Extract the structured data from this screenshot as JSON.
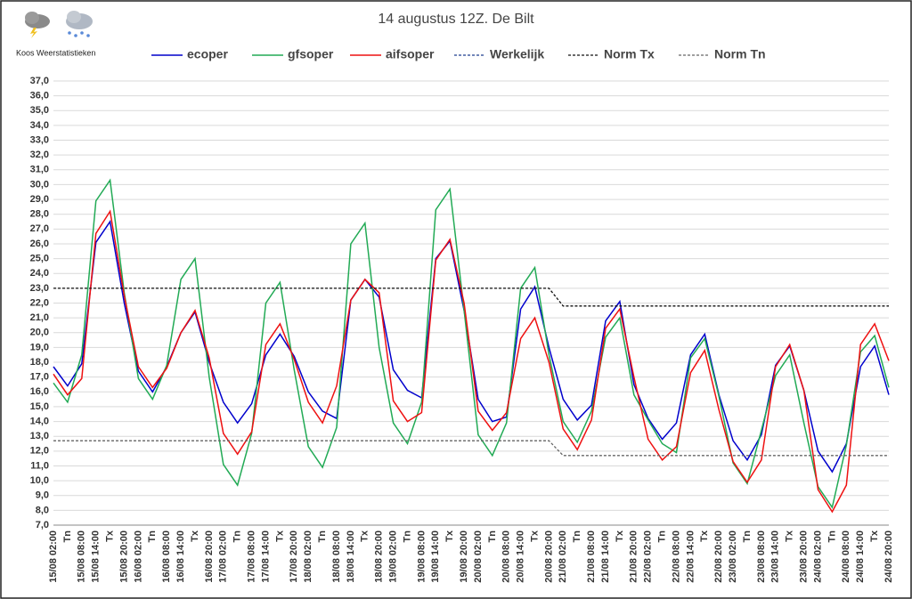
{
  "chart_data": {
    "type": "line",
    "title": "14 augustus 12Z. De Bilt",
    "brand": "Koos Weerstatistieken",
    "categories": [
      "15/08 02:00",
      "Tn",
      "15/08 08:00",
      "15/08 14:00",
      "Tx",
      "15/08 20:00",
      "16/08 02:00",
      "Tn",
      "16/08 08:00",
      "16/08 14:00",
      "Tx",
      "16/08 20:00",
      "17/08 02:00",
      "Tn",
      "17/08 08:00",
      "17/08 14:00",
      "Tx",
      "17/08 20:00",
      "18/08 02:00",
      "Tn",
      "18/08 08:00",
      "18/08 14:00",
      "Tx",
      "18/08 20:00",
      "19/08 02:00",
      "Tn",
      "19/08 08:00",
      "19/08 14:00",
      "Tx",
      "19/08 20:00",
      "20/08 02:00",
      "Tn",
      "20/08 08:00",
      "20/08 14:00",
      "Tx",
      "20/08 20:00",
      "21/08 02:00",
      "Tn",
      "21/08 08:00",
      "21/08 14:00",
      "Tx",
      "21/08 20:00",
      "22/08 02:00",
      "Tn",
      "22/08 08:00",
      "22/08 14:00",
      "Tx",
      "22/08 20:00",
      "23/08 02:00",
      "Tn",
      "23/08 08:00",
      "23/08 14:00",
      "Tx",
      "23/08 20:00",
      "24/08 02:00",
      "Tn",
      "24/08 08:00",
      "24/08 14:00",
      "Tx",
      "24/08 20:00"
    ],
    "series": [
      {
        "name": "ecoper",
        "color": "#0000cc",
        "dashed": false,
        "values": [
          17.7,
          16.4,
          17.9,
          26.1,
          27.5,
          22.0,
          17.4,
          16.0,
          17.7,
          20.0,
          21.4,
          18.0,
          15.3,
          13.9,
          15.2,
          18.5,
          19.9,
          18.4,
          16.0,
          14.7,
          14.2,
          22.2,
          23.6,
          22.4,
          17.5,
          16.1,
          15.6,
          25.0,
          26.2,
          21.5,
          15.5,
          14.0,
          14.3,
          21.6,
          23.1,
          19.0,
          15.5,
          14.1,
          15.1,
          20.8,
          22.1,
          16.5,
          14.2,
          12.8,
          13.9,
          18.5,
          19.9,
          15.8,
          12.7,
          11.4,
          13.1,
          17.8,
          19.1,
          16.1,
          12.0,
          10.6,
          12.5,
          17.7,
          19.1,
          15.8
        ]
      },
      {
        "name": "gfsoper",
        "color": "#22aa55",
        "dashed": false,
        "values": [
          16.6,
          15.3,
          18.5,
          28.9,
          30.3,
          22.7,
          16.9,
          15.5,
          17.8,
          23.6,
          25.0,
          17.0,
          11.1,
          9.7,
          13.2,
          22.0,
          23.4,
          17.5,
          12.3,
          10.9,
          13.6,
          26.0,
          27.4,
          19.0,
          13.9,
          12.5,
          15.3,
          28.3,
          29.7,
          21.5,
          13.1,
          11.7,
          13.9,
          23.0,
          24.4,
          18.5,
          14.0,
          12.6,
          14.7,
          19.7,
          21.0,
          15.8,
          14.1,
          12.5,
          11.9,
          18.3,
          19.6,
          15.7,
          11.2,
          9.8,
          13.4,
          17.1,
          18.5,
          13.9,
          9.6,
          8.2,
          12.4,
          18.7,
          19.8,
          16.3
        ]
      },
      {
        "name": "aifsoper",
        "color": "#ee1111",
        "dashed": false,
        "values": [
          17.2,
          15.8,
          16.9,
          26.7,
          28.2,
          22.5,
          17.7,
          16.3,
          17.6,
          20.0,
          21.5,
          18.3,
          13.2,
          11.8,
          13.3,
          19.2,
          20.6,
          18.2,
          15.3,
          13.9,
          16.4,
          22.2,
          23.6,
          22.7,
          15.4,
          14.0,
          14.6,
          24.9,
          26.3,
          22.0,
          14.7,
          13.4,
          14.6,
          19.6,
          21.0,
          18.0,
          13.5,
          12.1,
          14.1,
          20.3,
          21.6,
          17.0,
          12.8,
          11.4,
          12.3,
          17.3,
          18.8,
          14.8,
          11.3,
          9.9,
          11.4,
          17.7,
          19.2,
          16.1,
          9.4,
          7.9,
          9.7,
          19.2,
          20.6,
          18.1
        ]
      },
      {
        "name": "Werkelijk",
        "color": "#1f3f8f",
        "dashed": true,
        "values": [
          null,
          null,
          null,
          null,
          null,
          null,
          null,
          null,
          null,
          null,
          null,
          null,
          null,
          null,
          null,
          null,
          null,
          null,
          null,
          null,
          null,
          null,
          null,
          null,
          null,
          null,
          null,
          null,
          null,
          null,
          null,
          null,
          null,
          null,
          null,
          null,
          null,
          null,
          null,
          null,
          null,
          null,
          null,
          null,
          null,
          null,
          null,
          null,
          null,
          null,
          null,
          null,
          null,
          null,
          null,
          null,
          null,
          null,
          null,
          null
        ]
      },
      {
        "name": "Norm Tx",
        "color": "#111111",
        "dashed": true,
        "values": [
          23.0,
          23.0,
          23.0,
          23.0,
          23.0,
          23.0,
          23.0,
          23.0,
          23.0,
          23.0,
          23.0,
          23.0,
          23.0,
          23.0,
          23.0,
          23.0,
          23.0,
          23.0,
          23.0,
          23.0,
          23.0,
          23.0,
          23.0,
          23.0,
          23.0,
          23.0,
          23.0,
          23.0,
          23.0,
          23.0,
          23.0,
          23.0,
          23.0,
          23.0,
          23.0,
          23.0,
          21.8,
          21.8,
          21.8,
          21.8,
          21.8,
          21.8,
          21.8,
          21.8,
          21.8,
          21.8,
          21.8,
          21.8,
          21.8,
          21.8,
          21.8,
          21.8,
          21.8,
          21.8,
          21.8,
          21.8,
          21.8,
          21.8,
          21.8,
          21.8
        ]
      },
      {
        "name": "Norm Tn",
        "color": "#666666",
        "dashed": true,
        "values": [
          12.7,
          12.7,
          12.7,
          12.7,
          12.7,
          12.7,
          12.7,
          12.7,
          12.7,
          12.7,
          12.7,
          12.7,
          12.7,
          12.7,
          12.7,
          12.7,
          12.7,
          12.7,
          12.7,
          12.7,
          12.7,
          12.7,
          12.7,
          12.7,
          12.7,
          12.7,
          12.7,
          12.7,
          12.7,
          12.7,
          12.7,
          12.7,
          12.7,
          12.7,
          12.7,
          12.7,
          11.7,
          11.7,
          11.7,
          11.7,
          11.7,
          11.7,
          11.7,
          11.7,
          11.7,
          11.7,
          11.7,
          11.7,
          11.7,
          11.7,
          11.7,
          11.7,
          11.7,
          11.7,
          11.7,
          11.7,
          11.7,
          11.7,
          11.7,
          11.7
        ]
      }
    ],
    "ylim": [
      7,
      37
    ],
    "yticks": [
      {
        "value": 7,
        "label": "7,0"
      },
      {
        "value": 8,
        "label": "8,0"
      },
      {
        "value": 9,
        "label": "9,0"
      },
      {
        "value": 10,
        "label": "10,0"
      },
      {
        "value": 11,
        "label": "11,0"
      },
      {
        "value": 12,
        "label": "12,0"
      },
      {
        "value": 13,
        "label": "13,0"
      },
      {
        "value": 14,
        "label": "14,0"
      },
      {
        "value": 15,
        "label": "15,0"
      },
      {
        "value": 16,
        "label": "16,0"
      },
      {
        "value": 17,
        "label": "17,0"
      },
      {
        "value": 18,
        "label": "18,0"
      },
      {
        "value": 19,
        "label": "19,0"
      },
      {
        "value": 20,
        "label": "20,0"
      },
      {
        "value": 21,
        "label": "21,0"
      },
      {
        "value": 22,
        "label": "22,0"
      },
      {
        "value": 23,
        "label": "23,0"
      },
      {
        "value": 24,
        "label": "24,0"
      },
      {
        "value": 25,
        "label": "25,0"
      },
      {
        "value": 26,
        "label": "26,0"
      },
      {
        "value": 27,
        "label": "27,0"
      },
      {
        "value": 28,
        "label": "28,0"
      },
      {
        "value": 29,
        "label": "29,0"
      },
      {
        "value": 30,
        "label": "30,0"
      },
      {
        "value": 31,
        "label": "31,0"
      },
      {
        "value": 32,
        "label": "32,0"
      },
      {
        "value": 33,
        "label": "33,0"
      },
      {
        "value": 34,
        "label": "34,0"
      },
      {
        "value": 35,
        "label": "35,0"
      },
      {
        "value": 36,
        "label": "36,0"
      },
      {
        "value": 37,
        "label": "37,0"
      }
    ],
    "grid": true
  }
}
